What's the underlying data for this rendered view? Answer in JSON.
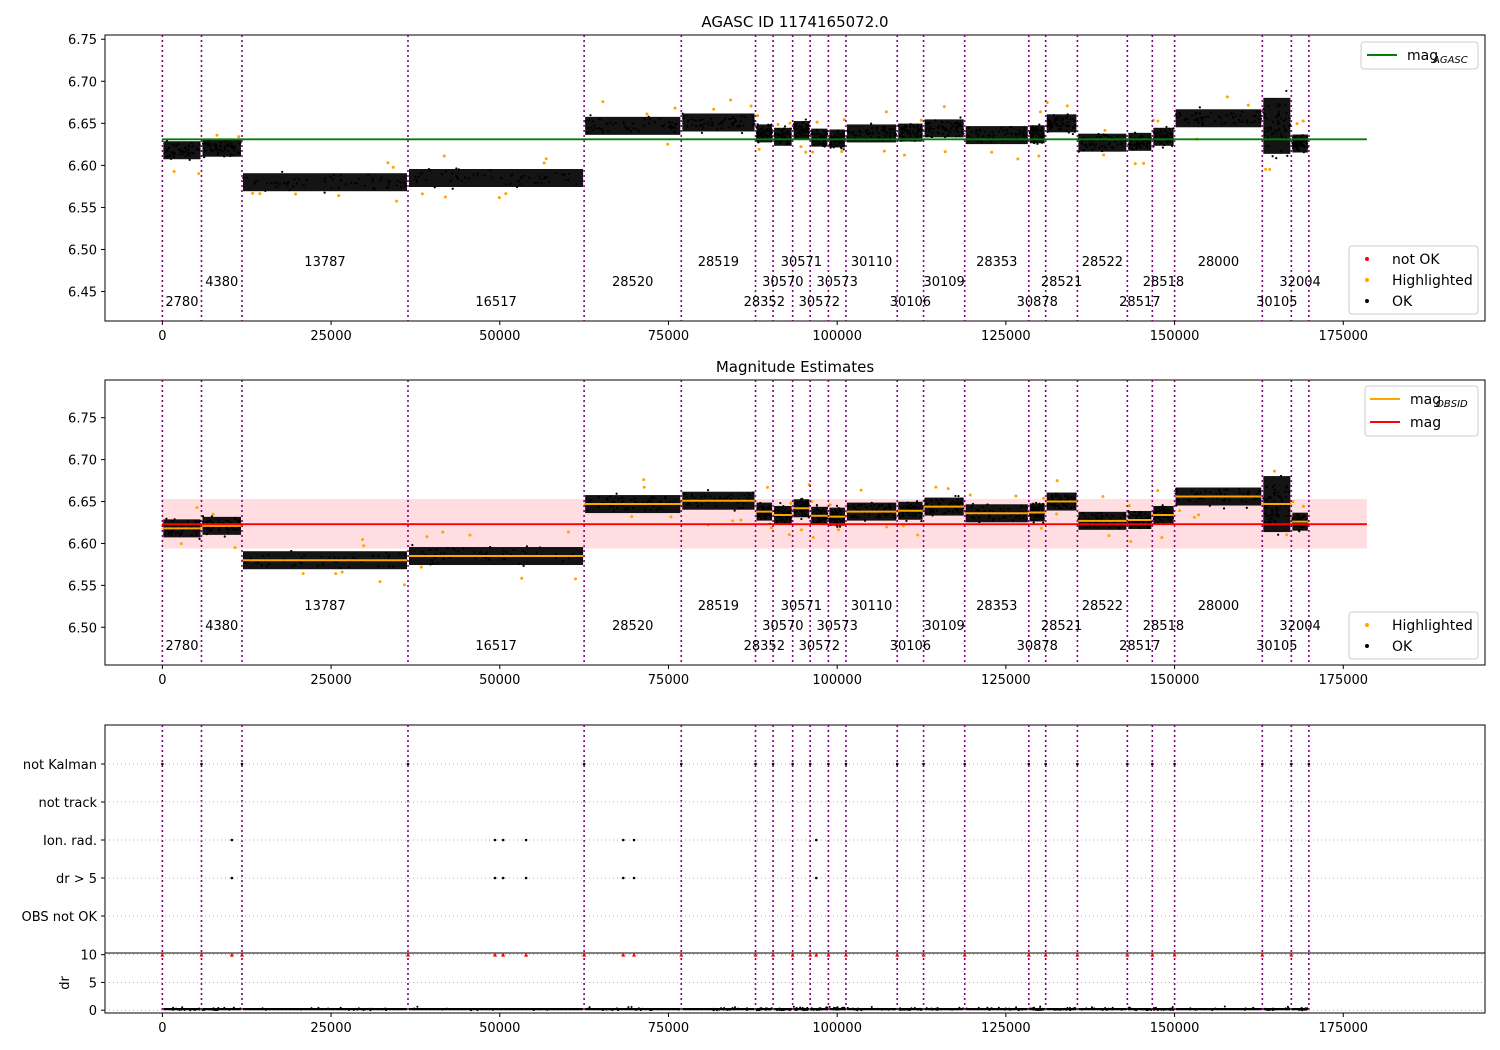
{
  "chart_data": [
    {
      "type": "scatter",
      "title": "AGASC ID 1174165072.0",
      "xlabel": "",
      "ylabel": "",
      "xlim": [
        -8500,
        196000
      ],
      "ylim": [
        6.415,
        6.755
      ],
      "xticks": [
        0,
        25000,
        50000,
        75000,
        100000,
        125000,
        150000,
        175000
      ],
      "yticks": [
        6.45,
        6.5,
        6.55,
        6.6,
        6.65,
        6.7,
        6.75
      ],
      "xtick_labels": [
        "0",
        "25000",
        "50000",
        "75000",
        "100000",
        "125000",
        "150000",
        "175000"
      ],
      "ytick_labels": [
        "6.45",
        "6.50",
        "6.55",
        "6.60",
        "6.65",
        "6.70",
        "6.75"
      ],
      "reference_lines": [
        {
          "name": "mag",
          "subscript": "AGASC",
          "value": 6.631,
          "color": "#008000",
          "x_range": [
            -8500,
            178500
          ]
        }
      ],
      "observation_boundaries": [
        0,
        5800,
        11800,
        36400,
        62500,
        76900,
        87900,
        90500,
        93400,
        96000,
        98700,
        101300,
        108900,
        112800,
        118900,
        128400,
        130900,
        135600,
        143000,
        146700,
        150000,
        163000,
        167300,
        169900
      ],
      "observations": [
        {
          "obsid": "2780",
          "start": 0,
          "end": 5800,
          "mag": 6.618,
          "row": 2
        },
        {
          "obsid": "4380",
          "start": 5800,
          "end": 11800,
          "mag": 6.621,
          "row": 1
        },
        {
          "obsid": "13787",
          "start": 11800,
          "end": 36400,
          "mag": 6.58,
          "row": 0
        },
        {
          "obsid": "16517",
          "start": 36400,
          "end": 62500,
          "mag": 6.585,
          "row": 2
        },
        {
          "obsid": "28520",
          "start": 62500,
          "end": 76900,
          "mag": 6.647,
          "row": 1
        },
        {
          "obsid": "28519",
          "start": 76900,
          "end": 87900,
          "mag": 6.651,
          "row": 0
        },
        {
          "obsid": "28352",
          "start": 87900,
          "end": 90500,
          "mag": 6.638,
          "row": 2
        },
        {
          "obsid": "30570",
          "start": 90500,
          "end": 93400,
          "mag": 6.634,
          "row": 1
        },
        {
          "obsid": "30571",
          "start": 93400,
          "end": 96000,
          "mag": 6.642,
          "row": 0
        },
        {
          "obsid": "30572",
          "start": 96000,
          "end": 98700,
          "mag": 6.633,
          "row": 2
        },
        {
          "obsid": "30573",
          "start": 98700,
          "end": 101300,
          "mag": 6.632,
          "row": 1
        },
        {
          "obsid": "30110",
          "start": 101300,
          "end": 108900,
          "mag": 6.638,
          "row": 0
        },
        {
          "obsid": "30106",
          "start": 108900,
          "end": 112800,
          "mag": 6.639,
          "row": 2
        },
        {
          "obsid": "30109",
          "start": 112800,
          "end": 118900,
          "mag": 6.644,
          "row": 1
        },
        {
          "obsid": "28353",
          "start": 118900,
          "end": 128400,
          "mag": 6.636,
          "row": 0
        },
        {
          "obsid": "30878",
          "start": 128400,
          "end": 130900,
          "mag": 6.637,
          "row": 2
        },
        {
          "obsid": "28521",
          "start": 130900,
          "end": 135600,
          "mag": 6.65,
          "row": 1
        },
        {
          "obsid": "28522",
          "start": 135600,
          "end": 143000,
          "mag": 6.627,
          "row": 0
        },
        {
          "obsid": "28517",
          "start": 143000,
          "end": 146700,
          "mag": 6.628,
          "row": 2
        },
        {
          "obsid": "28518",
          "start": 146700,
          "end": 150000,
          "mag": 6.634,
          "row": 1
        },
        {
          "obsid": "28000",
          "start": 150000,
          "end": 163000,
          "mag": 6.656,
          "row": 0
        },
        {
          "obsid": "30105",
          "start": 163000,
          "end": 167300,
          "mag": 6.647,
          "row": 2
        },
        {
          "obsid": "32004",
          "start": 167300,
          "end": 169900,
          "mag": 6.626,
          "row": 1
        }
      ],
      "legends": [
        {
          "position": "upper right",
          "entries": [
            {
              "label": "mag",
              "subscript": "AGASC",
              "color": "#008000",
              "marker": "line"
            }
          ]
        },
        {
          "position": "lower right",
          "entries": [
            {
              "label": "not OK",
              "color": "#ff0000",
              "marker": "point"
            },
            {
              "label": "Highlighted",
              "color": "#ffa500",
              "marker": "point"
            },
            {
              "label": "OK",
              "color": "#000000",
              "marker": "point"
            }
          ]
        }
      ]
    },
    {
      "type": "scatter",
      "title": "Magnitude Estimates",
      "xlabel": "",
      "ylabel": "",
      "xlim": [
        -8500,
        196000
      ],
      "ylim": [
        6.455,
        6.795
      ],
      "xticks": [
        0,
        25000,
        50000,
        75000,
        100000,
        125000,
        150000,
        175000
      ],
      "yticks": [
        6.5,
        6.55,
        6.6,
        6.65,
        6.7,
        6.75
      ],
      "xtick_labels": [
        "0",
        "25000",
        "50000",
        "75000",
        "100000",
        "125000",
        "150000",
        "175000"
      ],
      "ytick_labels": [
        "6.50",
        "6.55",
        "6.60",
        "6.65",
        "6.70",
        "6.75"
      ],
      "reference_lines": [
        {
          "name": "mag",
          "value": 6.623,
          "color": "#ff0000",
          "x_range": [
            -8500,
            178500
          ]
        }
      ],
      "band": {
        "low": 6.594,
        "high": 6.653,
        "color": "#ffdde1",
        "x_range": [
          -8500,
          178500
        ]
      },
      "legends": [
        {
          "position": "upper right",
          "entries": [
            {
              "label": "mag",
              "subscript": "OBSID",
              "color": "#ffa500",
              "marker": "line"
            },
            {
              "label": "mag",
              "color": "#ff0000",
              "marker": "line"
            }
          ]
        },
        {
          "position": "lower right",
          "entries": [
            {
              "label": "Highlighted",
              "color": "#ffa500",
              "marker": "point"
            },
            {
              "label": "OK",
              "color": "#000000",
              "marker": "point"
            }
          ]
        }
      ]
    },
    {
      "type": "scatter",
      "title": "",
      "xlabel": "",
      "ylabel": "",
      "xlim": [
        -8500,
        196000
      ],
      "flag_rows": [
        "not Kalman",
        "not track",
        "Ion. rad.",
        "dr > 5",
        "OBS not OK"
      ],
      "flags": {
        "not Kalman": [
          0,
          5800,
          11800,
          36400,
          62500,
          76900,
          87900,
          90500,
          93400,
          96000,
          98700,
          101300,
          108900,
          112800,
          118900,
          128400,
          130900,
          135600,
          143000,
          146700,
          150000,
          163000,
          167300,
          169900
        ],
        "not track": [],
        "Ion. rad.": [
          10300,
          49300,
          50500,
          53900,
          68300,
          69900,
          96900
        ],
        "dr > 5": [
          10300,
          49300,
          50500,
          53900,
          68300,
          69900,
          96900
        ],
        "OBS not OK": []
      }
    },
    {
      "type": "scatter",
      "title": "",
      "xlabel": "",
      "ylabel": "dr",
      "xlim": [
        -8500,
        196000
      ],
      "ylim": [
        -0.5,
        10.3
      ],
      "xticks": [
        0,
        25000,
        50000,
        75000,
        100000,
        125000,
        150000,
        175000
      ],
      "yticks": [
        0,
        5,
        10
      ],
      "xtick_labels": [
        "0",
        "25000",
        "50000",
        "75000",
        "100000",
        "125000",
        "150000",
        "175000"
      ],
      "ytick_labels": [
        "0",
        "5",
        "10"
      ],
      "clipped_points_at": 10,
      "clipped_x": [
        0,
        5800,
        10300,
        11800,
        36400,
        49300,
        50500,
        53900,
        62500,
        68300,
        69900,
        76900,
        87900,
        90500,
        93400,
        96000,
        96900,
        98700,
        101300,
        108900,
        112800,
        118900,
        128400,
        130900,
        135600,
        143000,
        146700,
        150000,
        163000,
        167300
      ]
    }
  ],
  "colors": {
    "ok": "#000000",
    "highlighted": "#ffa500",
    "not_ok": "#ff0000",
    "boundary": "#800080",
    "agasc_line": "#008000",
    "mag_line": "#ff0000",
    "obsid_line": "#ffa500",
    "band": "#ffdde1"
  }
}
